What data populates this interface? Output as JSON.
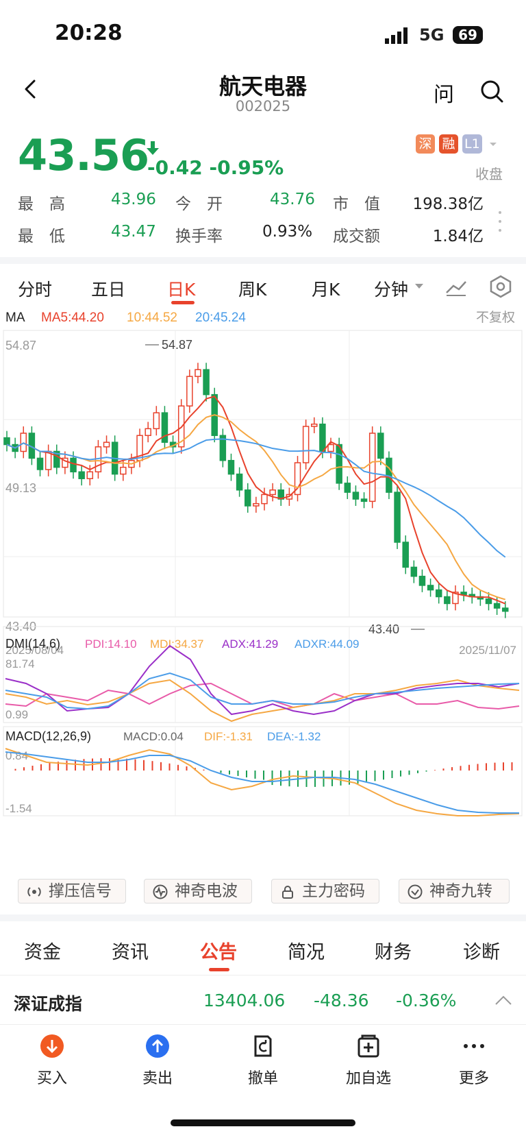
{
  "status": {
    "time": "20:28",
    "network": "5G",
    "battery": "69"
  },
  "header": {
    "title": "航天电器",
    "code": "002025",
    "ask": "问"
  },
  "quote": {
    "price": "43.56",
    "change": "-0.42",
    "pct": "-0.95%",
    "closed": "收盘",
    "badges": [
      "深",
      "融",
      "L1"
    ],
    "badge_colors": [
      "#f28a5a",
      "#e5532c",
      "#b0b8d8"
    ]
  },
  "stats": [
    {
      "l1": "最　高",
      "v1": "43.96",
      "l2": "今　开",
      "v2": "43.76",
      "l3": "市　值",
      "v3": "198.38亿"
    },
    {
      "l1": "最　低",
      "v1": "43.47",
      "l2": "换手率",
      "v2": "0.93%",
      "l3": "成交额",
      "v3": "1.84亿"
    }
  ],
  "chart_tabs": [
    "分时",
    "五日",
    "日K",
    "周K",
    "月K",
    "分钟"
  ],
  "active_chart_tab": "日K",
  "ma": {
    "label": "MA",
    "ma5": "MA5:44.20",
    "ma10": "10:44.52",
    "ma20": "20:45.24",
    "adj": "不复权"
  },
  "chart_data": [
    {
      "type": "candlestick",
      "ylim": [
        43.4,
        54.87
      ],
      "y_ticks": [
        "54.87",
        "49.13",
        "43.40"
      ],
      "x_ticks": [
        "2025/08/04",
        "2025/11/07"
      ],
      "high_label": "54.87",
      "low_label": "43.40",
      "series": [
        {
          "name": "MA5",
          "color": "#e8422c"
        },
        {
          "name": "MA10",
          "color": "#f5a742"
        },
        {
          "name": "MA20",
          "color": "#4a9ce8"
        }
      ]
    },
    {
      "type": "line",
      "title": "DMI(14,6)",
      "y_ticks": [
        "81.74",
        "0.99"
      ],
      "series": [
        {
          "name": "PDI:14.10",
          "color": "#e85aa8"
        },
        {
          "name": "MDI:34.37",
          "color": "#f5a742"
        },
        {
          "name": "ADX:41.29",
          "color": "#9a2fc8"
        },
        {
          "name": "ADXR:44.09",
          "color": "#4a9ce8"
        }
      ]
    },
    {
      "type": "bar",
      "title": "MACD(12,26,9)",
      "y_ticks": [
        "0.84",
        "-1.54"
      ],
      "series": [
        {
          "name": "MACD:0.04",
          "color": "#666666"
        },
        {
          "name": "DIF:-1.31",
          "color": "#f5a742"
        },
        {
          "name": "DEA:-1.32",
          "color": "#4a9ce8"
        }
      ]
    }
  ],
  "signals": [
    "撑压信号",
    "神奇电波",
    "主力密码",
    "神奇九转"
  ],
  "info_tabs": [
    "资金",
    "资讯",
    "公告",
    "简况",
    "财务",
    "诊断"
  ],
  "active_info_tab": "公告",
  "index": {
    "name": "深证成指",
    "value": "13404.06",
    "change": "-48.36",
    "pct": "-0.36%"
  },
  "bottom": [
    "买入",
    "卖出",
    "撤单",
    "加自选",
    "更多"
  ]
}
